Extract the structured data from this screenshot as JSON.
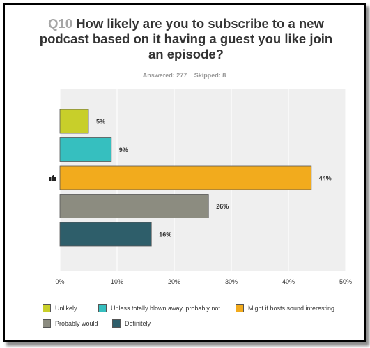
{
  "header": {
    "question_number": "Q10",
    "question_text": "How likely are you to subscribe to a new podcast based on it having a guest you like join an episode?",
    "answered": "Answered: 277",
    "skipped": "Skipped: 8"
  },
  "chart_data": {
    "type": "bar",
    "orientation": "horizontal",
    "categories": [
      "Unlikely",
      "Unless totally blown away, probably not",
      "Might if hosts sound interesting",
      "Probably would",
      "Definitely"
    ],
    "values": [
      5,
      9,
      44,
      26,
      16
    ],
    "value_labels": [
      "5%",
      "9%",
      "44%",
      "26%",
      "16%"
    ],
    "colors": [
      "#c8cf2a",
      "#36bfbf",
      "#f2ab1d",
      "#8c8c80",
      "#2e5e6a"
    ],
    "xlim": [
      0,
      50
    ],
    "xticks": [
      0,
      10,
      20,
      30,
      40,
      50
    ],
    "xtick_labels": [
      "0%",
      "10%",
      "20%",
      "30%",
      "40%",
      "50%"
    ],
    "highlighted_index": 2,
    "grid": true,
    "legend_position": "bottom",
    "background": "#efefef"
  },
  "icons": {
    "highlight": "thumbs-up-icon"
  }
}
